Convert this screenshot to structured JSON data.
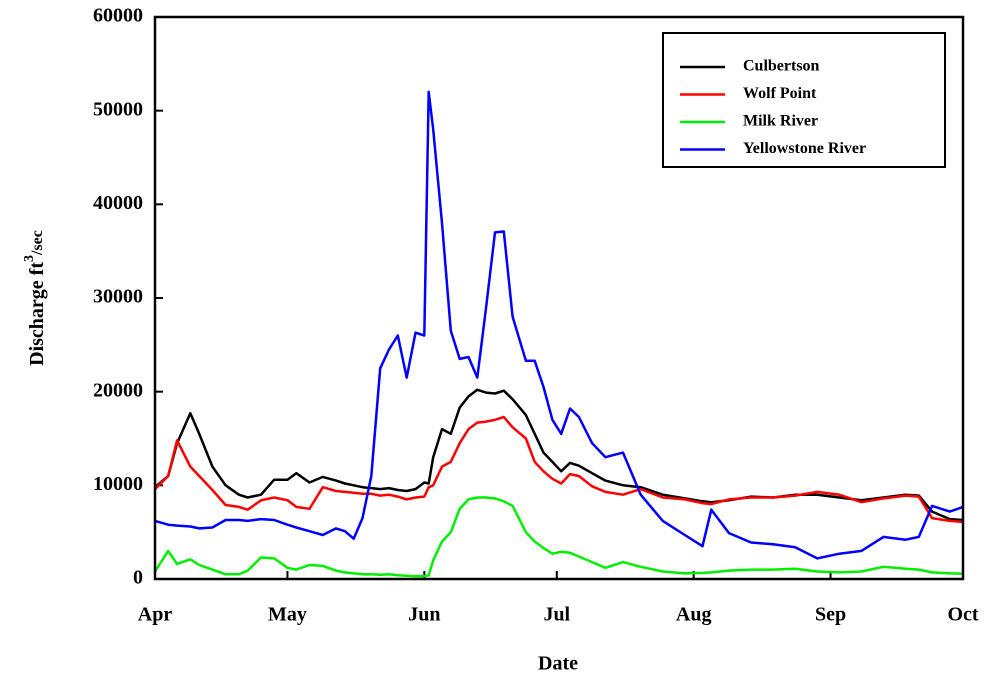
{
  "chart_data": {
    "type": "line",
    "xlabel": "Date",
    "ylabel": [
      "Discharge ft",
      "3",
      "/sec"
    ],
    "x": [
      0,
      3,
      5,
      8,
      10,
      13,
      16,
      19,
      21,
      24,
      27,
      30,
      32,
      35,
      38,
      41,
      43,
      45,
      47,
      49,
      51,
      53,
      55,
      57,
      59,
      61,
      62,
      63,
      65,
      67,
      69,
      71,
      73,
      75,
      77,
      79,
      81,
      84,
      86,
      88,
      90,
      92,
      94,
      96,
      99,
      102,
      106,
      110,
      115,
      120,
      124,
      126,
      130,
      135,
      140,
      145,
      150,
      155,
      160,
      165,
      170,
      173,
      176,
      180,
      183
    ],
    "xlim": [
      0,
      183
    ],
    "xticks": [
      {
        "value": 0,
        "label": "Apr"
      },
      {
        "value": 30,
        "label": "May"
      },
      {
        "value": 61,
        "label": "Jun"
      },
      {
        "value": 91,
        "label": "Jul"
      },
      {
        "value": 122,
        "label": "Aug"
      },
      {
        "value": 153,
        "label": "Sep"
      },
      {
        "value": 183,
        "label": "Oct"
      }
    ],
    "ylim": [
      0,
      60000
    ],
    "yticks": [
      0,
      10000,
      20000,
      30000,
      40000,
      50000,
      60000
    ],
    "legend": "upper right",
    "series": [
      {
        "name": "Culbertson",
        "color": "#000000",
        "values": [
          9800,
          11000,
          14500,
          17700,
          15500,
          12000,
          10000,
          9000,
          8700,
          9000,
          10600,
          10600,
          11300,
          10300,
          10900,
          10500,
          10200,
          10000,
          9800,
          9700,
          9600,
          9700,
          9500,
          9400,
          9600,
          10300,
          10200,
          13000,
          16000,
          15500,
          18300,
          19500,
          20200,
          19900,
          19800,
          20100,
          19200,
          17500,
          15500,
          13500,
          12500,
          11500,
          12400,
          12100,
          11300,
          10500,
          10000,
          9800,
          9000,
          8600,
          8300,
          8200,
          8400,
          8800,
          8700,
          9000,
          9000,
          8700,
          8400,
          8700,
          9000,
          8900,
          7200,
          6400,
          6300
        ]
      },
      {
        "name": "Wolf Point",
        "color": "#ff0000",
        "values": [
          9600,
          11000,
          14800,
          12000,
          11000,
          9500,
          7900,
          7700,
          7400,
          8400,
          8700,
          8400,
          7700,
          7500,
          9800,
          9400,
          9300,
          9200,
          9100,
          9100,
          8900,
          9000,
          8800,
          8500,
          8700,
          8800,
          9800,
          10000,
          12000,
          12500,
          14500,
          16000,
          16700,
          16800,
          17000,
          17300,
          16200,
          15000,
          12500,
          11500,
          10700,
          10200,
          11200,
          11000,
          9900,
          9300,
          9000,
          9600,
          8700,
          8500,
          8100,
          8000,
          8500,
          8700,
          8700,
          8900,
          9300,
          9000,
          8200,
          8600,
          8900,
          8800,
          6500,
          6200,
          6100
        ]
      },
      {
        "name": "Milk River",
        "color": "#00ee00",
        "values": [
          800,
          3000,
          1600,
          2100,
          1500,
          1000,
          500,
          500,
          900,
          2300,
          2200,
          1200,
          1000,
          1500,
          1400,
          900,
          700,
          600,
          500,
          500,
          450,
          500,
          400,
          350,
          300,
          300,
          400,
          2000,
          4000,
          5000,
          7500,
          8500,
          8700,
          8700,
          8600,
          8300,
          7800,
          5000,
          4000,
          3300,
          2700,
          2900,
          2800,
          2400,
          1800,
          1200,
          1800,
          1300,
          800,
          600,
          650,
          700,
          900,
          1000,
          1000,
          1100,
          800,
          700,
          800,
          1300,
          1100,
          1000,
          700,
          600,
          550
        ]
      },
      {
        "name": "Yellowstone River",
        "color": "#0000ff",
        "values": [
          6200,
          5800,
          5700,
          5600,
          5400,
          5500,
          6300,
          6300,
          6200,
          6400,
          6300,
          5800,
          5500,
          5100,
          4700,
          5400,
          5100,
          4300,
          6500,
          11000,
          22500,
          24500,
          26000,
          21500,
          26300,
          26000,
          52000,
          48000,
          38000,
          26500,
          23500,
          23700,
          21500,
          29000,
          37000,
          37100,
          28000,
          23300,
          23300,
          20500,
          17000,
          15500,
          18200,
          17300,
          14500,
          13000,
          13500,
          9000,
          6200,
          4700,
          3500,
          7400,
          4900,
          3900,
          3700,
          3400,
          2200,
          2700,
          3000,
          4500,
          4200,
          4500,
          7800,
          7200,
          7700
        ]
      }
    ]
  }
}
